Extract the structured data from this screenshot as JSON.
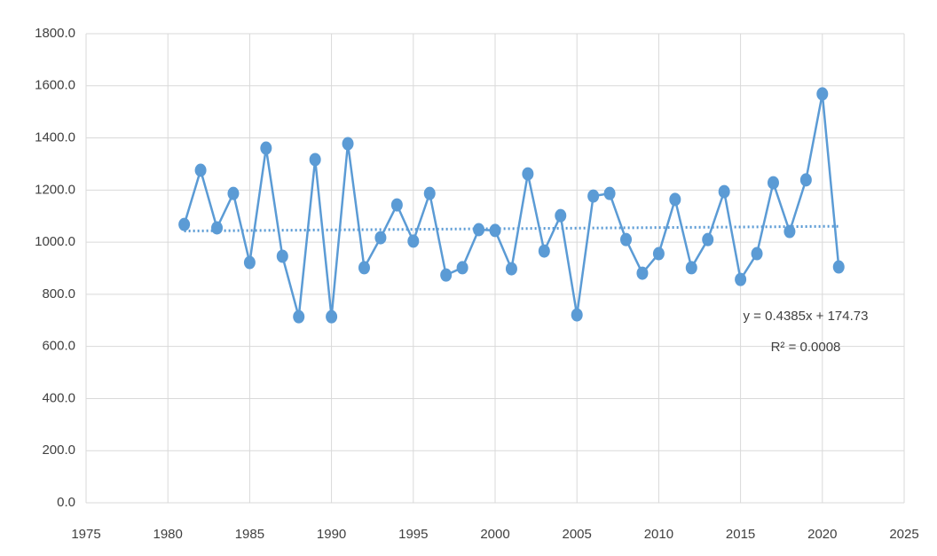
{
  "chart_data": {
    "type": "line",
    "series": [
      {
        "color": "#5b9bd5",
        "x": [
          1981,
          1982,
          1983,
          1984,
          1985,
          1986,
          1987,
          1988,
          1989,
          1990,
          1991,
          1992,
          1993,
          1994,
          1995,
          1996,
          1997,
          1998,
          1999,
          2000,
          2001,
          2002,
          2003,
          2004,
          2005,
          2006,
          2007,
          2008,
          2009,
          2010,
          2011,
          2012,
          2013,
          2014,
          2015,
          2016,
          2017,
          2018,
          2019,
          2020,
          2021
        ],
        "values": [
          1068,
          1276,
          1055,
          1187,
          922,
          1361,
          946,
          714,
          1317,
          714,
          1378,
          902,
          1017,
          1143,
          1004,
          1187,
          874,
          902,
          1048,
          1045,
          898,
          1262,
          966,
          1102,
          721,
          1177,
          1187,
          1010,
          881,
          956,
          1164,
          902,
          1010,
          1194,
          857,
          956,
          1228,
          1041,
          1239,
          1569,
          905
        ]
      }
    ],
    "trendline": {
      "color": "#5b9bd5",
      "x": [
        1981,
        2021
      ],
      "values": [
        1043,
        1061
      ],
      "equation": "y = 0.4385x + 174.73",
      "r_squared": "R² = 0.0008"
    },
    "xlim": [
      1975,
      2025
    ],
    "xticks": [
      1975,
      1980,
      1985,
      1990,
      1995,
      2000,
      2005,
      2010,
      2015,
      2020,
      2025
    ],
    "ylim": [
      0,
      1800
    ],
    "yticks": [
      {
        "value": 0,
        "label": "0.0"
      },
      {
        "value": 200,
        "label": "200.0"
      },
      {
        "value": 400,
        "label": "400.0"
      },
      {
        "value": 600,
        "label": "600.0"
      },
      {
        "value": 800,
        "label": "800.0"
      },
      {
        "value": 1000,
        "label": "1000.0"
      },
      {
        "value": 1200,
        "label": "1200.0"
      },
      {
        "value": 1400,
        "label": "1400.0"
      },
      {
        "value": 1600,
        "label": "1600.0"
      },
      {
        "value": 1800,
        "label": "1800.0"
      }
    ],
    "grid": true
  }
}
